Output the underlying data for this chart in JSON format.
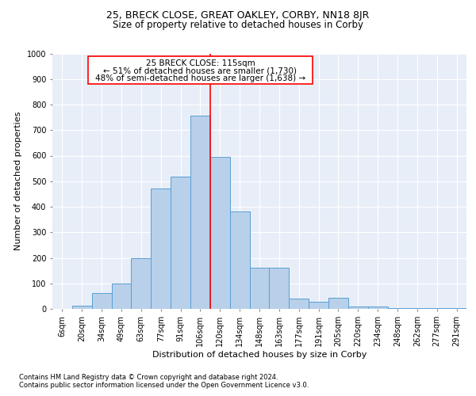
{
  "title": "25, BRECK CLOSE, GREAT OAKLEY, CORBY, NN18 8JR",
  "subtitle": "Size of property relative to detached houses in Corby",
  "xlabel": "Distribution of detached houses by size in Corby",
  "ylabel": "Number of detached properties",
  "footnote1": "Contains HM Land Registry data © Crown copyright and database right 2024.",
  "footnote2": "Contains public sector information licensed under the Open Government Licence v3.0.",
  "categories": [
    "6sqm",
    "20sqm",
    "34sqm",
    "49sqm",
    "63sqm",
    "77sqm",
    "91sqm",
    "106sqm",
    "120sqm",
    "134sqm",
    "148sqm",
    "163sqm",
    "177sqm",
    "191sqm",
    "205sqm",
    "220sqm",
    "234sqm",
    "248sqm",
    "262sqm",
    "277sqm",
    "291sqm"
  ],
  "values": [
    0,
    13,
    62,
    100,
    197,
    470,
    519,
    758,
    596,
    382,
    160,
    160,
    40,
    27,
    43,
    10,
    8,
    3,
    2,
    2,
    2
  ],
  "bar_color": "#b8d0ea",
  "bar_edge_color": "#5a9fd4",
  "bg_color": "#e8eef8",
  "grid_color": "#ffffff",
  "marker_label": "25 BRECK CLOSE: 115sqm",
  "annotation_line1": "← 51% of detached houses are smaller (1,730)",
  "annotation_line2": "48% of semi-detached houses are larger (1,638) →",
  "marker_bar_index": 7,
  "ylim": [
    0,
    1000
  ],
  "yticks": [
    0,
    100,
    200,
    300,
    400,
    500,
    600,
    700,
    800,
    900,
    1000
  ],
  "title_fontsize": 9,
  "subtitle_fontsize": 8.5,
  "axis_label_fontsize": 8,
  "tick_fontsize": 7,
  "annot_fontsize": 7.5,
  "footnote_fontsize": 6
}
